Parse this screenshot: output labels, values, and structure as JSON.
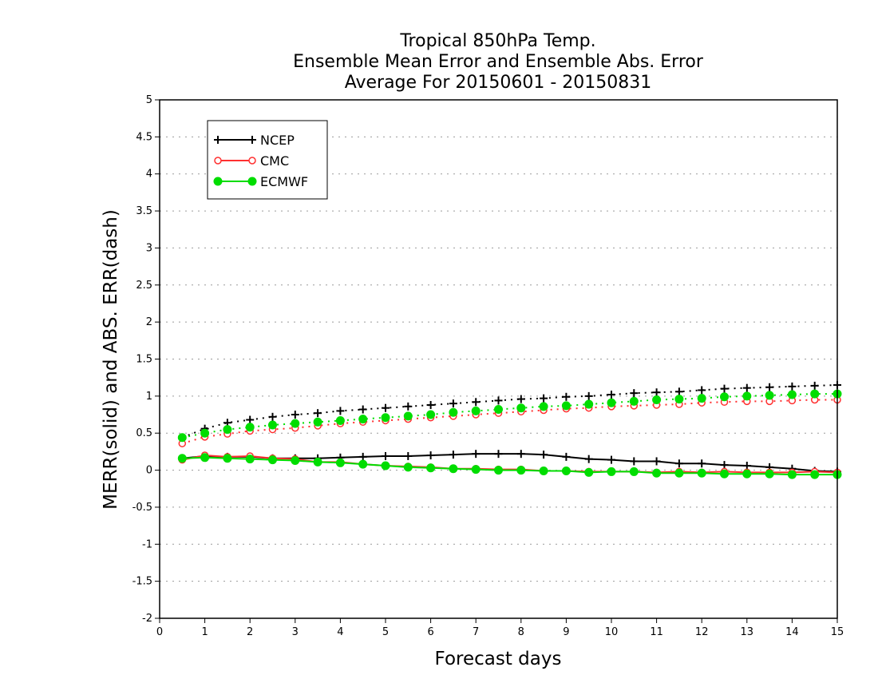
{
  "chart_data": {
    "type": "line",
    "title": [
      "Tropical 850hPa Temp.",
      "Ensemble Mean Error and Ensemble Abs. Error",
      "Average For 20150601 - 20150831"
    ],
    "xlabel": "Forecast days",
    "ylabel": "MERR(solid) and ABS. ERR(dash)",
    "xlim": [
      0,
      15
    ],
    "ylim": [
      -2,
      5
    ],
    "xticks": [
      "0",
      "1",
      "2",
      "3",
      "4",
      "5",
      "6",
      "7",
      "8",
      "9",
      "10",
      "11",
      "12",
      "13",
      "14",
      "15"
    ],
    "yticks": [
      "-2",
      "-1.5",
      "-1",
      "-0.5",
      "0",
      "0.5",
      "1",
      "1.5",
      "2",
      "2.5",
      "3",
      "3.5",
      "4",
      "4.5",
      "5"
    ],
    "grid": "horizontal dotted",
    "legend_position": "top-left",
    "x": [
      0.5,
      1,
      1.5,
      2,
      2.5,
      3,
      3.5,
      4,
      4.5,
      5,
      5.5,
      6,
      6.5,
      7,
      7.5,
      8,
      8.5,
      9,
      9.5,
      10,
      10.5,
      11,
      11.5,
      12,
      12.5,
      13,
      13.5,
      14,
      14.5,
      15
    ],
    "series": [
      {
        "name": "NCEP",
        "color": "#000000",
        "marker": "plus",
        "merr": [
          0.16,
          0.19,
          0.18,
          0.18,
          0.16,
          0.16,
          0.16,
          0.17,
          0.18,
          0.19,
          0.19,
          0.2,
          0.21,
          0.22,
          0.22,
          0.22,
          0.21,
          0.18,
          0.15,
          0.14,
          0.12,
          0.12,
          0.09,
          0.09,
          0.07,
          0.06,
          0.04,
          0.02,
          -0.01,
          -0.02
        ],
        "abserr": [
          0.44,
          0.56,
          0.64,
          0.68,
          0.72,
          0.75,
          0.77,
          0.8,
          0.82,
          0.84,
          0.86,
          0.88,
          0.9,
          0.92,
          0.94,
          0.96,
          0.97,
          0.99,
          1.0,
          1.02,
          1.04,
          1.05,
          1.06,
          1.08,
          1.1,
          1.11,
          1.12,
          1.13,
          1.14,
          1.15
        ]
      },
      {
        "name": "CMC",
        "color": "#ff3030",
        "marker": "open-circle",
        "merr": [
          0.14,
          0.2,
          0.18,
          0.19,
          0.16,
          0.15,
          0.11,
          0.11,
          0.08,
          0.06,
          0.05,
          0.04,
          0.02,
          0.02,
          0.01,
          0.01,
          -0.01,
          -0.01,
          -0.02,
          -0.02,
          -0.02,
          -0.03,
          -0.02,
          -0.03,
          -0.02,
          -0.03,
          -0.03,
          -0.03,
          -0.02,
          -0.03
        ],
        "abserr": [
          0.36,
          0.45,
          0.49,
          0.53,
          0.55,
          0.57,
          0.6,
          0.63,
          0.65,
          0.67,
          0.69,
          0.71,
          0.73,
          0.75,
          0.77,
          0.79,
          0.81,
          0.83,
          0.84,
          0.86,
          0.87,
          0.88,
          0.89,
          0.91,
          0.92,
          0.93,
          0.93,
          0.94,
          0.95,
          0.95
        ]
      },
      {
        "name": "ECMWF",
        "color": "#00dd00",
        "marker": "filled-circle",
        "merr": [
          0.16,
          0.17,
          0.16,
          0.15,
          0.14,
          0.13,
          0.11,
          0.1,
          0.08,
          0.06,
          0.04,
          0.03,
          0.02,
          0.01,
          0.0,
          0.0,
          -0.01,
          -0.01,
          -0.03,
          -0.02,
          -0.02,
          -0.04,
          -0.04,
          -0.04,
          -0.05,
          -0.05,
          -0.05,
          -0.06,
          -0.06,
          -0.06
        ],
        "abserr": [
          0.44,
          0.5,
          0.55,
          0.58,
          0.61,
          0.63,
          0.65,
          0.67,
          0.69,
          0.71,
          0.73,
          0.75,
          0.78,
          0.8,
          0.82,
          0.84,
          0.86,
          0.87,
          0.89,
          0.91,
          0.93,
          0.95,
          0.96,
          0.97,
          0.99,
          1.0,
          1.01,
          1.02,
          1.03,
          1.03
        ]
      }
    ]
  }
}
